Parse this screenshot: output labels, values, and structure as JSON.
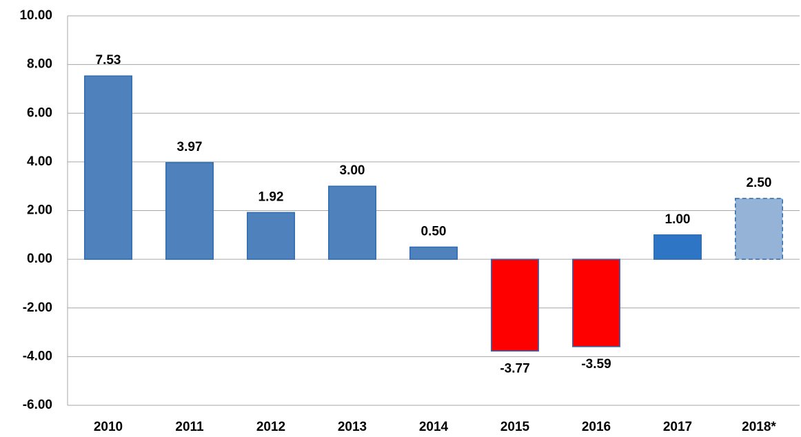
{
  "chart_data": {
    "type": "bar",
    "categories": [
      "2010",
      "2011",
      "2012",
      "2013",
      "2014",
      "2015",
      "2016",
      "2017",
      "2018*"
    ],
    "values": [
      7.53,
      3.97,
      1.92,
      3.0,
      0.5,
      -3.77,
      -3.59,
      1.0,
      2.5
    ],
    "value_labels": [
      "7.53",
      "3.97",
      "1.92",
      "3.00",
      "0.50",
      "-3.77",
      "-3.59",
      "1.00",
      "2.50"
    ],
    "colors": [
      "#4f81bd",
      "#4f81bd",
      "#4f81bd",
      "#4f81bd",
      "#4f81bd",
      "#ff0000",
      "#ff0000",
      "#2e75c6",
      "#95b3d7"
    ],
    "edge_styles": [
      "solid",
      "solid",
      "solid",
      "solid",
      "solid",
      "solid",
      "solid",
      "solid",
      "dashed"
    ],
    "ylim": [
      -6,
      10
    ],
    "yticks": [
      {
        "value": -6,
        "label": "-6.00"
      },
      {
        "value": -4,
        "label": "-4.00"
      },
      {
        "value": -2,
        "label": "-2.00"
      },
      {
        "value": 0,
        "label": "0.00"
      },
      {
        "value": 2,
        "label": "2.00"
      },
      {
        "value": 4,
        "label": "4.00"
      },
      {
        "value": 6,
        "label": "6.00"
      },
      {
        "value": 8,
        "label": "8.00"
      },
      {
        "value": 10,
        "label": "10.00"
      }
    ],
    "grid": true
  }
}
